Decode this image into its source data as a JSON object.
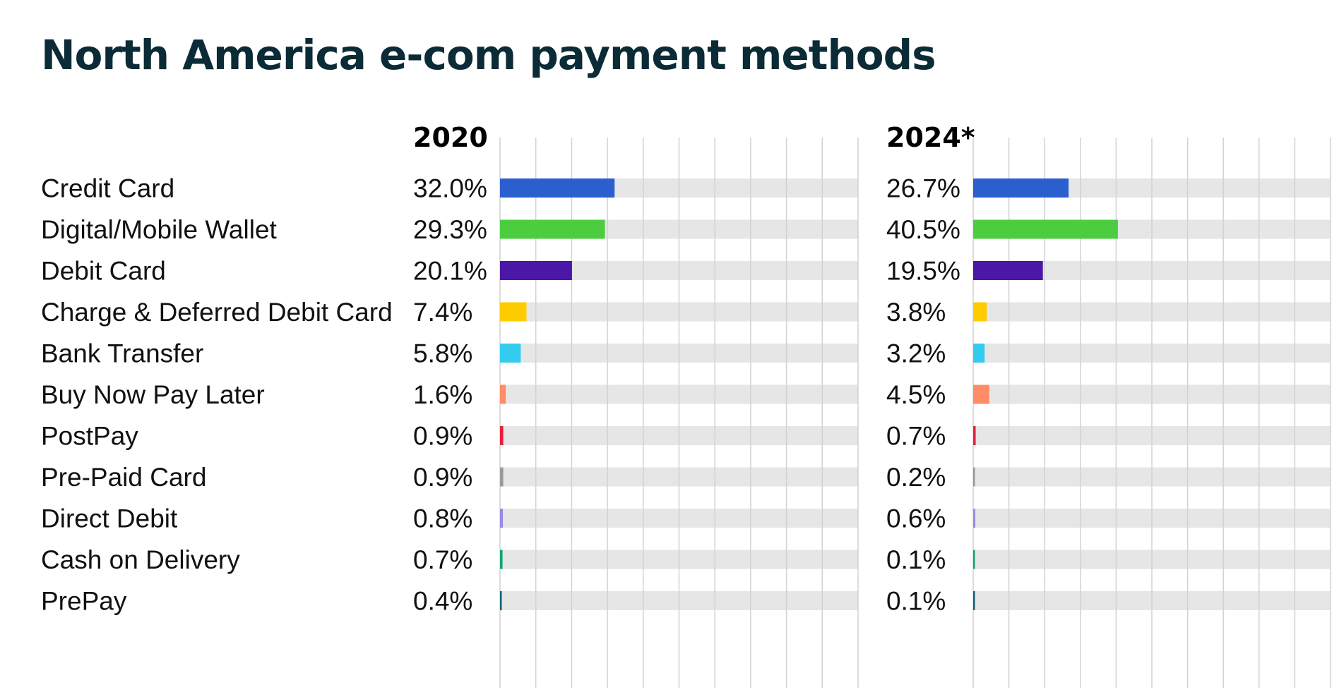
{
  "chart_data": {
    "type": "bar",
    "orientation": "horizontal",
    "title": "North America e-com payment methods",
    "categories": [
      "Credit Card",
      "Digital/Mobile Wallet",
      "Debit Card",
      "Charge & Deferred Debit Card",
      "Bank Transfer",
      "Buy Now Pay Later",
      "PostPay",
      "Pre-Paid Card",
      "Direct Debit",
      "Cash on Delivery",
      "PrePay"
    ],
    "colors": [
      "#2b5fcf",
      "#4ccd40",
      "#4a17a6",
      "#ffcc00",
      "#33ccee",
      "#ff8c66",
      "#e8213a",
      "#999999",
      "#9b8be0",
      "#10a377",
      "#15607a"
    ],
    "xlim": [
      0,
      100
    ],
    "grid": true,
    "series": [
      {
        "name": "2020",
        "values": [
          32.0,
          29.3,
          20.1,
          7.4,
          5.8,
          1.6,
          0.9,
          0.9,
          0.8,
          0.7,
          0.4
        ],
        "labels": [
          "32.0%",
          "29.3%",
          "20.1%",
          "7.4%",
          "5.8%",
          "1.6%",
          "0.9%",
          "0.9%",
          "0.8%",
          "0.7%",
          "0.4%"
        ]
      },
      {
        "name": "2024*",
        "values": [
          26.7,
          40.5,
          19.5,
          3.8,
          3.2,
          4.5,
          0.7,
          0.2,
          0.6,
          0.1,
          0.1
        ],
        "labels": [
          "26.7%",
          "40.5%",
          "19.5%",
          "3.8%",
          "3.2%",
          "4.5%",
          "0.7%",
          "0.2%",
          "0.6%",
          "0.1%",
          "0.1%"
        ]
      }
    ]
  }
}
